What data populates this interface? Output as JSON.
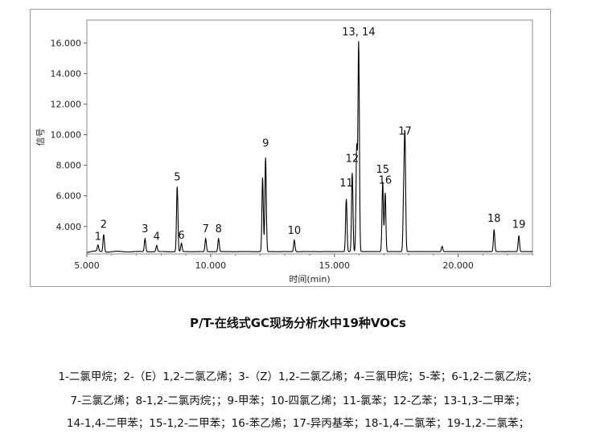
{
  "chart_data": {
    "type": "line",
    "title": "",
    "xlabel": "时间(min)",
    "ylabel": "信号",
    "xlim": [
      5.0,
      23.0
    ],
    "ylim": [
      2.2,
      17.5
    ],
    "x_ticks": [
      5,
      10,
      15,
      20
    ],
    "x_tick_labels": [
      "5.000",
      "10.000",
      "15.000",
      "20.000"
    ],
    "y_ticks": [
      4,
      6,
      8,
      10,
      12,
      14,
      16
    ],
    "y_tick_labels": [
      "4.000",
      "6.000",
      "8.000",
      "10.000",
      "12.000",
      "14.000",
      "16.000"
    ],
    "grid": false,
    "baseline": 2.35,
    "trace_color": "#000000",
    "peaks": [
      {
        "label": "1",
        "x": 5.45,
        "y": 2.75,
        "label_y": 2.9
      },
      {
        "label": "2",
        "x": 5.68,
        "y": 3.5,
        "label_y": 3.7
      },
      {
        "label": "3",
        "x": 7.35,
        "y": 3.2,
        "label_y": 3.4
      },
      {
        "label": "4",
        "x": 7.82,
        "y": 2.75,
        "label_y": 2.9
      },
      {
        "label": "5",
        "x": 8.65,
        "y": 6.6,
        "label_y": 6.8
      },
      {
        "label": "6",
        "x": 8.82,
        "y": 2.9,
        "label_y": 3.0
      },
      {
        "label": "7",
        "x": 9.8,
        "y": 3.2,
        "label_y": 3.4
      },
      {
        "label": "8",
        "x": 10.32,
        "y": 3.2,
        "label_y": 3.4
      },
      {
        "label": "9",
        "x": 12.22,
        "y": 8.5,
        "label_y": 9.0
      },
      {
        "label": "10",
        "x": 13.38,
        "y": 3.1,
        "label_y": 3.3
      },
      {
        "label": "11",
        "x": 15.48,
        "y": 5.8,
        "label_y": 6.4
      },
      {
        "label": "12",
        "x": 15.72,
        "y": 7.5,
        "label_y": 8.0
      },
      {
        "label": "13, 14",
        "x": 15.98,
        "y": 16.0,
        "label_y": 16.3
      },
      {
        "label": "15",
        "x": 16.95,
        "y": 6.9,
        "label_y": 7.3
      },
      {
        "label": "16",
        "x": 17.05,
        "y": 6.2,
        "label_y": 6.6
      },
      {
        "label": "17",
        "x": 17.85,
        "y": 9.5,
        "label_y": 9.8
      },
      {
        "label": "18",
        "x": 21.45,
        "y": 3.8,
        "label_y": 4.1
      },
      {
        "label": "19",
        "x": 22.45,
        "y": 3.4,
        "label_y": 3.7
      }
    ],
    "unlabeled_peaks": [
      {
        "x": 12.1,
        "y": 7.2
      },
      {
        "x": 15.9,
        "y": 9.2
      },
      {
        "x": 17.8,
        "y": 5.8
      },
      {
        "x": 19.35,
        "y": 2.7
      }
    ]
  },
  "caption": "P/T-在线式GC现场分析水中19种VOCs",
  "compound_legend": [
    "1-二氯甲烷；2-（E）1,2-二氯乙烯；3-（Z）1,2-二氯乙烯；4-三氯甲烷；5-苯；6-1,2-二氯乙烷；",
    "7-三氯乙烯；8-1,2-二氯丙烷；；9-甲苯；10-四氯乙烯；11-氯苯；12-乙苯；13-1,3-二甲苯；",
    "14-1,4-二甲苯；15-1,2-二甲苯；16-苯乙烯；17-异丙基苯；18-1,4-二氯苯；19-1,2-二氯苯；"
  ]
}
